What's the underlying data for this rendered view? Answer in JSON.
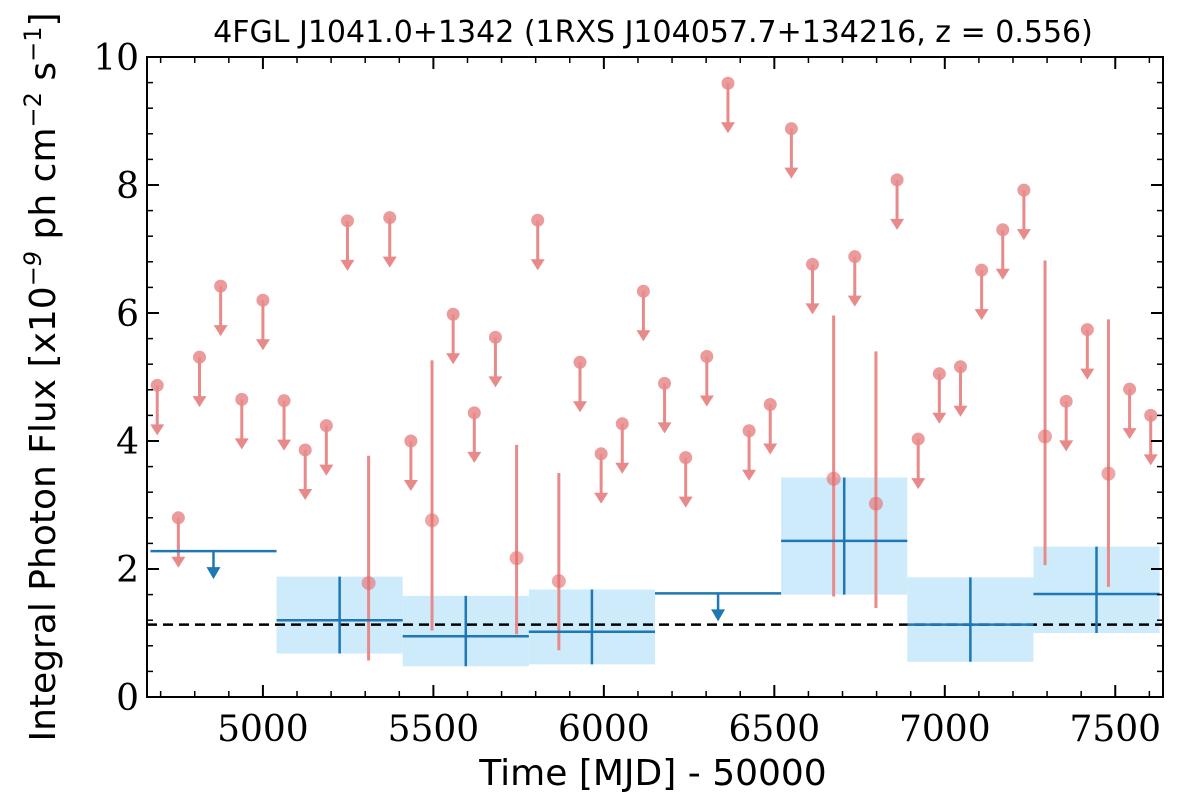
{
  "chart_data": {
    "type": "scatter",
    "title": "4FGL J1041.0+1342 (1RXS J104057.7+134216, z = 0.556)",
    "xlabel": "Time [MJD] - 50000",
    "ylabel": "Integral Photon Flux [x10^-9 ph cm^-2 s^-1]",
    "xlim": [
      4660,
      7640
    ],
    "ylim": [
      0,
      10
    ],
    "x_ticks": [
      5000,
      5500,
      6000,
      6500,
      7000,
      7500
    ],
    "x_tick_labels": [
      "5000",
      "5500",
      "6000",
      "6500",
      "7000",
      "7500"
    ],
    "y_ticks": [
      0,
      2,
      4,
      6,
      8,
      10
    ],
    "y_tick_labels": [
      "0",
      "2",
      "4",
      "6",
      "8",
      "10"
    ],
    "grid": false,
    "colors": {
      "fine_upper_limit": "#e88a8a",
      "fine_detection": "#e46a6a",
      "coarse_line": "#1f77b4",
      "coarse_band": "#cdebfb",
      "average_line": "#000000"
    },
    "reference_line": {
      "y": 1.13,
      "style": "dashed"
    },
    "coarse_bins": [
      {
        "x0": 4670,
        "x1": 5040,
        "y": 2.28,
        "upper_limit": true
      },
      {
        "x0": 5040,
        "x1": 5410,
        "y": 1.2,
        "lo": 0.68,
        "hi": 1.88,
        "upper_limit": false
      },
      {
        "x0": 5410,
        "x1": 5780,
        "y": 0.95,
        "lo": 0.48,
        "hi": 1.58,
        "upper_limit": false
      },
      {
        "x0": 5780,
        "x1": 6150,
        "y": 1.02,
        "lo": 0.51,
        "hi": 1.68,
        "upper_limit": false
      },
      {
        "x0": 6150,
        "x1": 6520,
        "y": 1.62,
        "upper_limit": true
      },
      {
        "x0": 6520,
        "x1": 6890,
        "y": 2.44,
        "lo": 1.6,
        "hi": 3.43,
        "upper_limit": false
      },
      {
        "x0": 6890,
        "x1": 7260,
        "y": 1.13,
        "lo": 0.55,
        "hi": 1.87,
        "upper_limit": false
      },
      {
        "x0": 7260,
        "x1": 7630,
        "y": 1.61,
        "lo": 1.0,
        "hi": 2.35,
        "upper_limit": false
      }
    ],
    "fine_bins": [
      {
        "x": 4690,
        "y": 4.87,
        "upper_limit": true
      },
      {
        "x": 4752,
        "y": 2.8,
        "upper_limit": true
      },
      {
        "x": 4814,
        "y": 5.31,
        "upper_limit": true
      },
      {
        "x": 4876,
        "y": 6.42,
        "upper_limit": true
      },
      {
        "x": 4938,
        "y": 4.65,
        "upper_limit": true
      },
      {
        "x": 5000,
        "y": 6.2,
        "upper_limit": true
      },
      {
        "x": 5062,
        "y": 4.63,
        "upper_limit": true
      },
      {
        "x": 5124,
        "y": 3.86,
        "upper_limit": true
      },
      {
        "x": 5186,
        "y": 4.24,
        "upper_limit": true
      },
      {
        "x": 5248,
        "y": 7.44,
        "upper_limit": true
      },
      {
        "x": 5310,
        "y": 1.78,
        "lo": 0.57,
        "hi": 3.77,
        "upper_limit": false
      },
      {
        "x": 5372,
        "y": 7.49,
        "upper_limit": true
      },
      {
        "x": 5434,
        "y": 4.0,
        "upper_limit": true
      },
      {
        "x": 5496,
        "y": 2.76,
        "lo": 1.04,
        "hi": 5.26,
        "upper_limit": false
      },
      {
        "x": 5558,
        "y": 5.98,
        "upper_limit": true
      },
      {
        "x": 5620,
        "y": 4.44,
        "upper_limit": true
      },
      {
        "x": 5682,
        "y": 5.62,
        "upper_limit": true
      },
      {
        "x": 5744,
        "y": 2.17,
        "lo": 0.98,
        "hi": 3.94,
        "upper_limit": false
      },
      {
        "x": 5806,
        "y": 7.45,
        "upper_limit": true
      },
      {
        "x": 5868,
        "y": 1.81,
        "lo": 0.73,
        "hi": 3.5,
        "upper_limit": false
      },
      {
        "x": 5930,
        "y": 5.23,
        "upper_limit": true
      },
      {
        "x": 5992,
        "y": 3.8,
        "upper_limit": true
      },
      {
        "x": 6054,
        "y": 4.27,
        "upper_limit": true
      },
      {
        "x": 6116,
        "y": 6.34,
        "upper_limit": true
      },
      {
        "x": 6178,
        "y": 4.9,
        "upper_limit": true
      },
      {
        "x": 6240,
        "y": 3.74,
        "upper_limit": true
      },
      {
        "x": 6302,
        "y": 5.32,
        "upper_limit": true
      },
      {
        "x": 6364,
        "y": 9.59,
        "upper_limit": true
      },
      {
        "x": 6426,
        "y": 4.16,
        "upper_limit": true
      },
      {
        "x": 6488,
        "y": 4.57,
        "upper_limit": true
      },
      {
        "x": 6550,
        "y": 8.88,
        "upper_limit": true
      },
      {
        "x": 6612,
        "y": 6.76,
        "upper_limit": true
      },
      {
        "x": 6674,
        "y": 3.41,
        "lo": 1.57,
        "hi": 5.96,
        "upper_limit": false
      },
      {
        "x": 6736,
        "y": 6.88,
        "upper_limit": true
      },
      {
        "x": 6798,
        "y": 3.02,
        "lo": 1.39,
        "hi": 5.4,
        "upper_limit": false
      },
      {
        "x": 6860,
        "y": 8.08,
        "upper_limit": true
      },
      {
        "x": 6922,
        "y": 4.03,
        "upper_limit": true
      },
      {
        "x": 6984,
        "y": 5.05,
        "upper_limit": true
      },
      {
        "x": 7046,
        "y": 5.16,
        "upper_limit": true
      },
      {
        "x": 7108,
        "y": 6.67,
        "upper_limit": true
      },
      {
        "x": 7170,
        "y": 7.3,
        "upper_limit": true
      },
      {
        "x": 7232,
        "y": 7.92,
        "upper_limit": true
      },
      {
        "x": 7294,
        "y": 4.07,
        "lo": 2.06,
        "hi": 6.82,
        "upper_limit": false
      },
      {
        "x": 7356,
        "y": 4.62,
        "upper_limit": true
      },
      {
        "x": 7418,
        "y": 5.74,
        "upper_limit": true
      },
      {
        "x": 7480,
        "y": 3.49,
        "lo": 1.72,
        "hi": 5.9,
        "upper_limit": false
      },
      {
        "x": 7542,
        "y": 4.81,
        "upper_limit": true
      },
      {
        "x": 7604,
        "y": 4.4,
        "upper_limit": true
      }
    ]
  }
}
